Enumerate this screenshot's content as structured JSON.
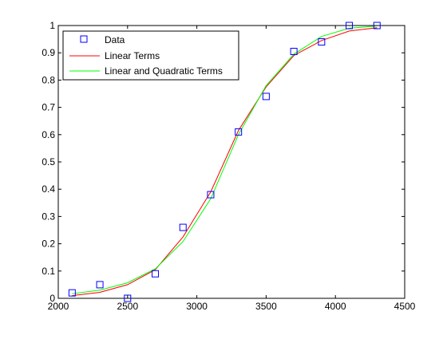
{
  "chart_data": {
    "type": "line",
    "xlim": [
      2000,
      4500
    ],
    "ylim": [
      0,
      1
    ],
    "xticks": [
      2000,
      2500,
      3000,
      3500,
      4000,
      4500
    ],
    "yticks": [
      0,
      0.1,
      0.2,
      0.3,
      0.4,
      0.5,
      0.6,
      0.7,
      0.8,
      0.9,
      1
    ],
    "grid": false,
    "legend": "top-left",
    "series": [
      {
        "name": "Data",
        "kind": "markers",
        "marker": "square",
        "color": "#0000ff",
        "x": [
          2100,
          2300,
          2500,
          2700,
          2900,
          3100,
          3300,
          3500,
          3700,
          3900,
          4100,
          4300
        ],
        "y": [
          0.02,
          0.05,
          0.0,
          0.09,
          0.26,
          0.38,
          0.61,
          0.74,
          0.905,
          0.94,
          1.0,
          1.0
        ]
      },
      {
        "name": "Linear Terms",
        "kind": "line",
        "color": "#ff0000",
        "x": [
          2100,
          2300,
          2500,
          2700,
          2900,
          3100,
          3300,
          3500,
          3700,
          3900,
          4100,
          4300
        ],
        "y": [
          0.01,
          0.022,
          0.05,
          0.105,
          0.225,
          0.39,
          0.615,
          0.775,
          0.89,
          0.945,
          0.98,
          0.992
        ]
      },
      {
        "name": "Linear and Quadratic Terms",
        "kind": "line",
        "color": "#00ff00",
        "x": [
          2100,
          2300,
          2500,
          2700,
          2900,
          3100,
          3300,
          3500,
          3700,
          3900,
          4100,
          4300
        ],
        "y": [
          0.017,
          0.03,
          0.057,
          0.108,
          0.208,
          0.365,
          0.6,
          0.78,
          0.895,
          0.96,
          0.99,
          0.998
        ]
      }
    ]
  }
}
